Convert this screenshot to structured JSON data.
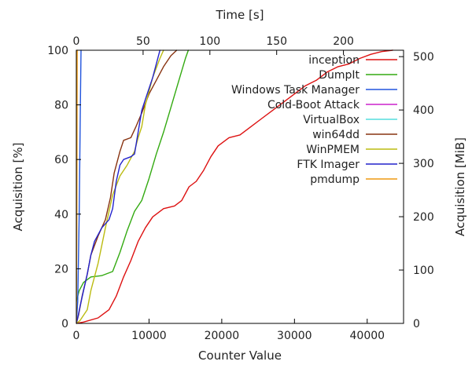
{
  "chart_data": {
    "type": "line",
    "title": "",
    "xlabel": "Counter Value",
    "ylabel": "Acquisition [%]",
    "x2label": "Time [s]",
    "y2label": "Acquisition [MiB]",
    "xlim": [
      0,
      45000
    ],
    "ylim": [
      0,
      100
    ],
    "x2lim": [
      0,
      245
    ],
    "y2lim": [
      0,
      512
    ],
    "xticks": [
      0,
      10000,
      20000,
      30000,
      40000
    ],
    "yticks": [
      0,
      20,
      40,
      60,
      80,
      100
    ],
    "x2ticks": [
      0,
      50,
      100,
      150,
      200
    ],
    "y2ticks": [
      0,
      100,
      200,
      300,
      400,
      500
    ],
    "grid": false,
    "legend_position": "top-right",
    "series": [
      {
        "name": "inception",
        "color": "#dd1111",
        "points": [
          [
            0,
            0
          ],
          [
            1000,
            0.5
          ],
          [
            3000,
            2
          ],
          [
            4500,
            5
          ],
          [
            5500,
            10
          ],
          [
            6500,
            17
          ],
          [
            7500,
            23
          ],
          [
            8500,
            30
          ],
          [
            9500,
            35
          ],
          [
            10500,
            39
          ],
          [
            12000,
            42
          ],
          [
            13500,
            43
          ],
          [
            14500,
            45
          ],
          [
            15500,
            50
          ],
          [
            16500,
            52
          ],
          [
            17500,
            56
          ],
          [
            18500,
            61
          ],
          [
            19500,
            65
          ],
          [
            21000,
            68
          ],
          [
            22500,
            69
          ],
          [
            24000,
            72
          ],
          [
            25500,
            75
          ],
          [
            27000,
            78
          ],
          [
            28500,
            81
          ],
          [
            30000,
            84
          ],
          [
            31500,
            87
          ],
          [
            33000,
            89
          ],
          [
            34500,
            92
          ],
          [
            36000,
            94
          ],
          [
            37500,
            95
          ],
          [
            39000,
            97
          ],
          [
            40500,
            98.5
          ],
          [
            42000,
            99.5
          ],
          [
            43500,
            100
          ]
        ]
      },
      {
        "name": "DumpIt",
        "color": "#33aa11",
        "points": [
          [
            0,
            8
          ],
          [
            400,
            12
          ],
          [
            1000,
            15
          ],
          [
            2000,
            17
          ],
          [
            3500,
            17.5
          ],
          [
            5000,
            19
          ],
          [
            6000,
            26
          ],
          [
            7000,
            34
          ],
          [
            8000,
            41
          ],
          [
            9000,
            45
          ],
          [
            10000,
            53
          ],
          [
            11000,
            62
          ],
          [
            12000,
            70
          ],
          [
            13000,
            79
          ],
          [
            14000,
            88
          ],
          [
            15000,
            97
          ],
          [
            15400,
            100
          ]
        ]
      },
      {
        "name": "Windows Task Manager",
        "color": "#2255dd",
        "points": [
          [
            0,
            0
          ],
          [
            200,
            8
          ],
          [
            400,
            40
          ],
          [
            550,
            78
          ],
          [
            650,
            100
          ]
        ]
      },
      {
        "name": "Cold-Boot Attack",
        "color": "#cc22cc",
        "points": [
          [
            0,
            0
          ]
        ]
      },
      {
        "name": "VirtualBox",
        "color": "#55dddd",
        "points": [
          [
            0,
            0
          ]
        ]
      },
      {
        "name": "win64dd",
        "color": "#883311",
        "points": [
          [
            0,
            0
          ],
          [
            300,
            3
          ],
          [
            800,
            10
          ],
          [
            1500,
            18
          ],
          [
            2000,
            25
          ],
          [
            3000,
            32
          ],
          [
            4000,
            38
          ],
          [
            4700,
            46
          ],
          [
            5200,
            55
          ],
          [
            6000,
            63
          ],
          [
            6500,
            67
          ],
          [
            7500,
            68
          ],
          [
            8200,
            72
          ],
          [
            9000,
            77
          ],
          [
            10000,
            84
          ],
          [
            11000,
            89
          ],
          [
            12000,
            94
          ],
          [
            13000,
            98
          ],
          [
            13800,
            100
          ]
        ]
      },
      {
        "name": "WinPMEM",
        "color": "#bbbb11",
        "points": [
          [
            0,
            0
          ],
          [
            500,
            1
          ],
          [
            1500,
            5
          ],
          [
            2000,
            12
          ],
          [
            3000,
            22
          ],
          [
            4000,
            35
          ],
          [
            5000,
            47
          ],
          [
            6000,
            54
          ],
          [
            7000,
            58
          ],
          [
            8000,
            63
          ],
          [
            8500,
            68
          ],
          [
            9000,
            72
          ],
          [
            9500,
            80
          ],
          [
            10500,
            90
          ],
          [
            11500,
            97
          ],
          [
            12000,
            100
          ]
        ]
      },
      {
        "name": "FTK Imager",
        "color": "#2222cc",
        "points": [
          [
            0,
            0
          ],
          [
            200,
            2
          ],
          [
            500,
            6
          ],
          [
            1000,
            12
          ],
          [
            1500,
            18
          ],
          [
            2000,
            25
          ],
          [
            2500,
            30
          ],
          [
            3500,
            35
          ],
          [
            4500,
            38
          ],
          [
            5000,
            42
          ],
          [
            5500,
            52
          ],
          [
            6000,
            58
          ],
          [
            6500,
            60
          ],
          [
            7500,
            61
          ],
          [
            8000,
            62
          ],
          [
            8500,
            70
          ],
          [
            9000,
            78
          ],
          [
            9500,
            82
          ],
          [
            10500,
            90
          ],
          [
            11000,
            95
          ],
          [
            11500,
            100
          ]
        ]
      },
      {
        "name": "pmdump",
        "color": "#ee9911",
        "points": [
          [
            0,
            0
          ],
          [
            80,
            40
          ],
          [
            120,
            100
          ]
        ]
      }
    ]
  }
}
